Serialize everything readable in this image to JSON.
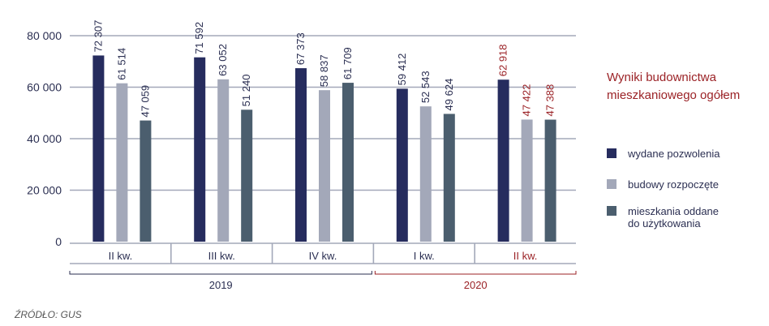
{
  "chart_data": {
    "type": "bar",
    "title": "Wyniki budownictwa mieszkaniowego ogółem",
    "source": "ŹRÓDŁO: GUS",
    "ylim": [
      0,
      80000
    ],
    "yticks": [
      {
        "value": 0,
        "label": "0"
      },
      {
        "value": 20000,
        "label": "20 000"
      },
      {
        "value": 40000,
        "label": "40 000"
      },
      {
        "value": 60000,
        "label": "60 000"
      },
      {
        "value": 80000,
        "label": "80 000"
      }
    ],
    "grid": true,
    "legend_position": "right",
    "categories": [
      "II kw.",
      "III kw.",
      "IV kw.",
      "I kw.",
      "II kw."
    ],
    "category_highlight": [
      false,
      false,
      false,
      false,
      true
    ],
    "years": [
      {
        "label": "2019",
        "from": 0,
        "to": 2,
        "highlight": false
      },
      {
        "label": "2020",
        "from": 3,
        "to": 4,
        "highlight": true
      }
    ],
    "series": [
      {
        "name": "wydane pozwolenia",
        "color": "#262c5e",
        "values": [
          72307,
          71592,
          67373,
          59412,
          62918
        ],
        "labels": [
          "72 307",
          "71 592",
          "67 373",
          "59 412",
          "62 918"
        ]
      },
      {
        "name": "budowy rozpoczęte",
        "color": "#a3a8b9",
        "values": [
          61514,
          63052,
          58837,
          52543,
          47422
        ],
        "labels": [
          "61 514",
          "63 052",
          "58 837",
          "52 543",
          "47 422"
        ]
      },
      {
        "name": "mieszkania oddane do użytkowania",
        "name_lines": [
          "mieszkania oddane",
          "do użytkowania"
        ],
        "color": "#4b5e6e",
        "values": [
          47059,
          51240,
          61709,
          49624,
          47388
        ],
        "labels": [
          "47 059",
          "51 240",
          "61 709",
          "49 624",
          "47 388"
        ]
      }
    ],
    "colors": {
      "axis": "#2b2f52",
      "grid": "#a3a8b9",
      "highlight": "#9b2226",
      "label": "#2b2f52"
    }
  }
}
